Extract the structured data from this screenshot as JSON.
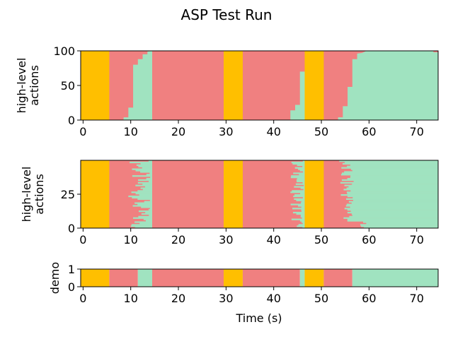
{
  "chart_data": {
    "title": "ASP Test Run",
    "xlabel": "Time (s)",
    "xlim": [
      -0.5,
      74.5
    ],
    "xticks": [
      0,
      10,
      20,
      30,
      40,
      50,
      60,
      70
    ],
    "colors": {
      "yellow": "#FFBF00",
      "red": "#F08080",
      "green": "#A0E3C0"
    },
    "panels": [
      {
        "type": "area",
        "ylabel": "high-level actions",
        "ylim": [
          0,
          100
        ],
        "yticks": [
          0,
          50,
          100
        ],
        "yellow_ranges": [
          [
            -0.5,
            5.5
          ],
          [
            29.5,
            33.5
          ],
          [
            46.5,
            50.5
          ]
        ],
        "green_fraction": [
          [
            5.5,
            0
          ],
          [
            8.5,
            0
          ],
          [
            8.5,
            4
          ],
          [
            9.5,
            4
          ],
          [
            9.5,
            18
          ],
          [
            10.5,
            18
          ],
          [
            10.5,
            80
          ],
          [
            11.5,
            80
          ],
          [
            11.5,
            88
          ],
          [
            12.5,
            88
          ],
          [
            12.5,
            95
          ],
          [
            13.5,
            95
          ],
          [
            13.5,
            99
          ],
          [
            14.5,
            100
          ],
          [
            14.5,
            0
          ],
          [
            43.5,
            0
          ],
          [
            43.5,
            14
          ],
          [
            44.5,
            14
          ],
          [
            44.5,
            22
          ],
          [
            45.5,
            22
          ],
          [
            45.5,
            70
          ],
          [
            46.5,
            70
          ],
          [
            50.5,
            0
          ],
          [
            53.5,
            0
          ],
          [
            53.5,
            4
          ],
          [
            54.5,
            4
          ],
          [
            54.5,
            20
          ],
          [
            55.5,
            20
          ],
          [
            55.5,
            48
          ],
          [
            56.5,
            48
          ],
          [
            56.5,
            88
          ],
          [
            57.5,
            88
          ],
          [
            57.5,
            96
          ],
          [
            58.5,
            97
          ],
          [
            59.5,
            100
          ],
          [
            73.5,
            100
          ],
          [
            73.5,
            98
          ],
          [
            74.5,
            98
          ]
        ]
      },
      {
        "type": "heatmap",
        "ylabel": "high-level actions",
        "ylim": [
          0,
          50
        ],
        "yticks": [
          0,
          25
        ],
        "rows": 50,
        "yellow_ranges": [
          [
            -0.5,
            5.5
          ],
          [
            29.5,
            33.5
          ],
          [
            46.5,
            50.5
          ]
        ]
      },
      {
        "type": "heatmap",
        "ylabel": "demo",
        "ylim": [
          0,
          1
        ],
        "yticks": [
          0,
          1
        ],
        "segments": [
          {
            "from": -0.5,
            "to": 5.5,
            "color": "yellow"
          },
          {
            "from": 5.5,
            "to": 11.5,
            "color": "red"
          },
          {
            "from": 11.5,
            "to": 14.5,
            "color": "green"
          },
          {
            "from": 14.5,
            "to": 29.5,
            "color": "red"
          },
          {
            "from": 29.5,
            "to": 33.5,
            "color": "yellow"
          },
          {
            "from": 33.5,
            "to": 45.5,
            "color": "red"
          },
          {
            "from": 45.5,
            "to": 46.5,
            "color": "green"
          },
          {
            "from": 46.5,
            "to": 50.5,
            "color": "yellow"
          },
          {
            "from": 50.5,
            "to": 56.5,
            "color": "red"
          },
          {
            "from": 56.5,
            "to": 74.5,
            "color": "green"
          }
        ]
      }
    ]
  }
}
